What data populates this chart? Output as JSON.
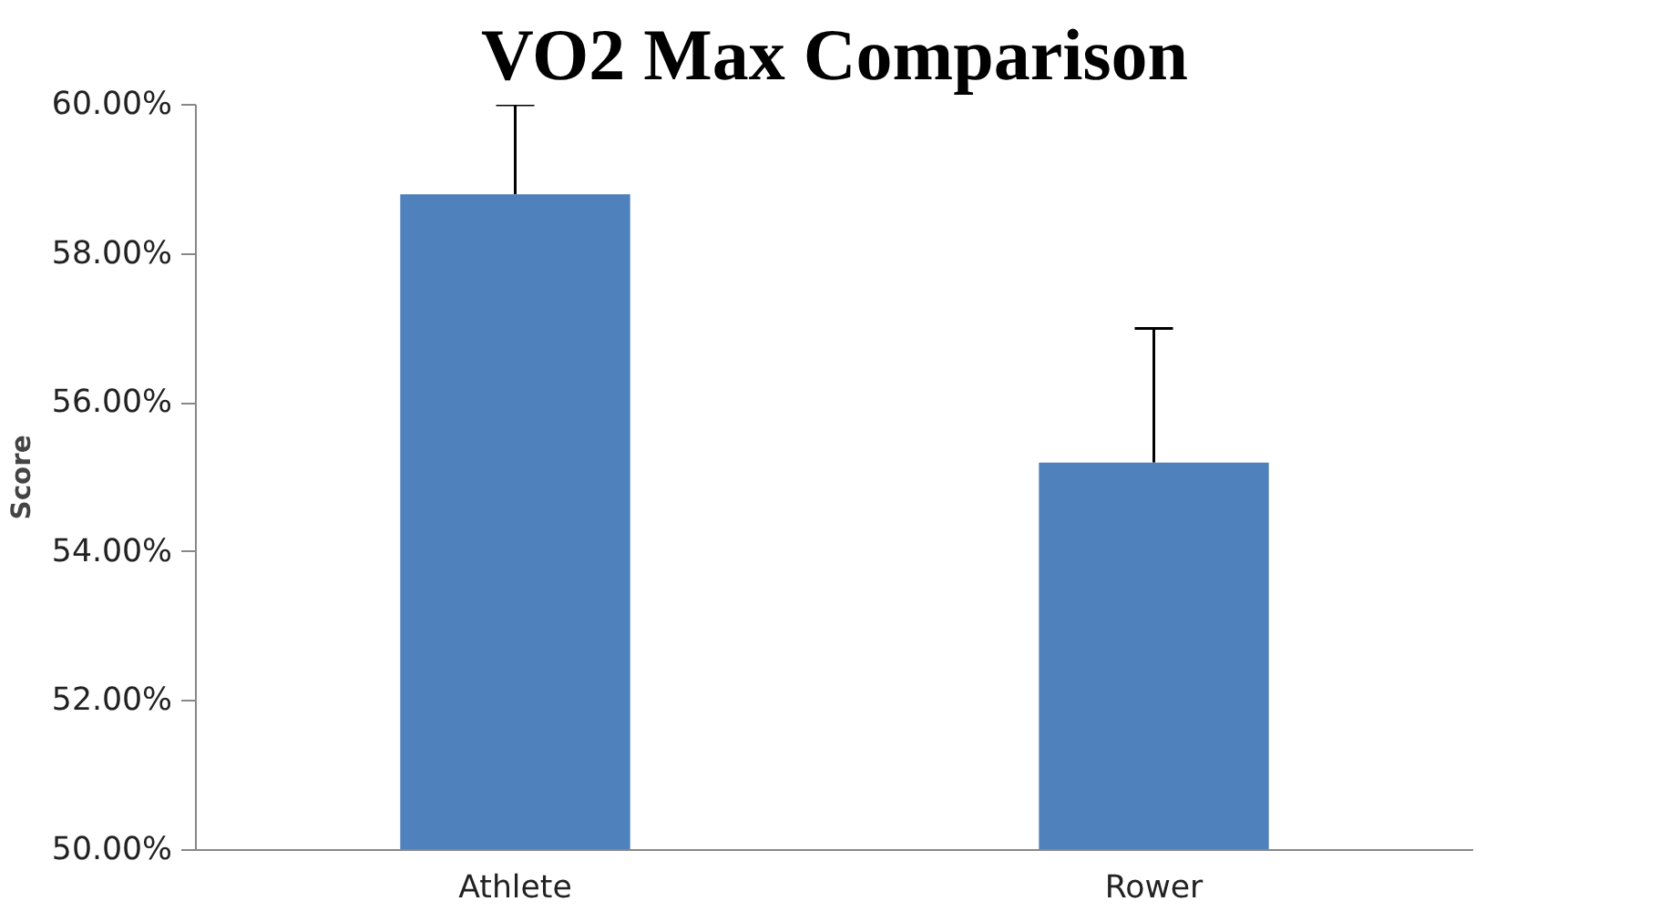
{
  "chart_data": {
    "type": "bar",
    "title": "VO2 Max Comparison",
    "ylabel": "Score",
    "categories": [
      "Athlete",
      "Rower"
    ],
    "values": [
      58.8,
      55.2
    ],
    "color": "#4f81bd",
    "errors": [
      [
        58.8,
        60.0
      ],
      [
        55.2,
        57.0
      ]
    ],
    "ylim": [
      50,
      60
    ],
    "yticks": [
      {
        "value": 50,
        "label": "50.00%"
      },
      {
        "value": 52,
        "label": "52.00%"
      },
      {
        "value": 54,
        "label": "54.00%"
      },
      {
        "value": 56,
        "label": "56.00%"
      },
      {
        "value": 58,
        "label": "58.00%"
      },
      {
        "value": 60,
        "label": "60.00%"
      }
    ],
    "grid": false
  }
}
